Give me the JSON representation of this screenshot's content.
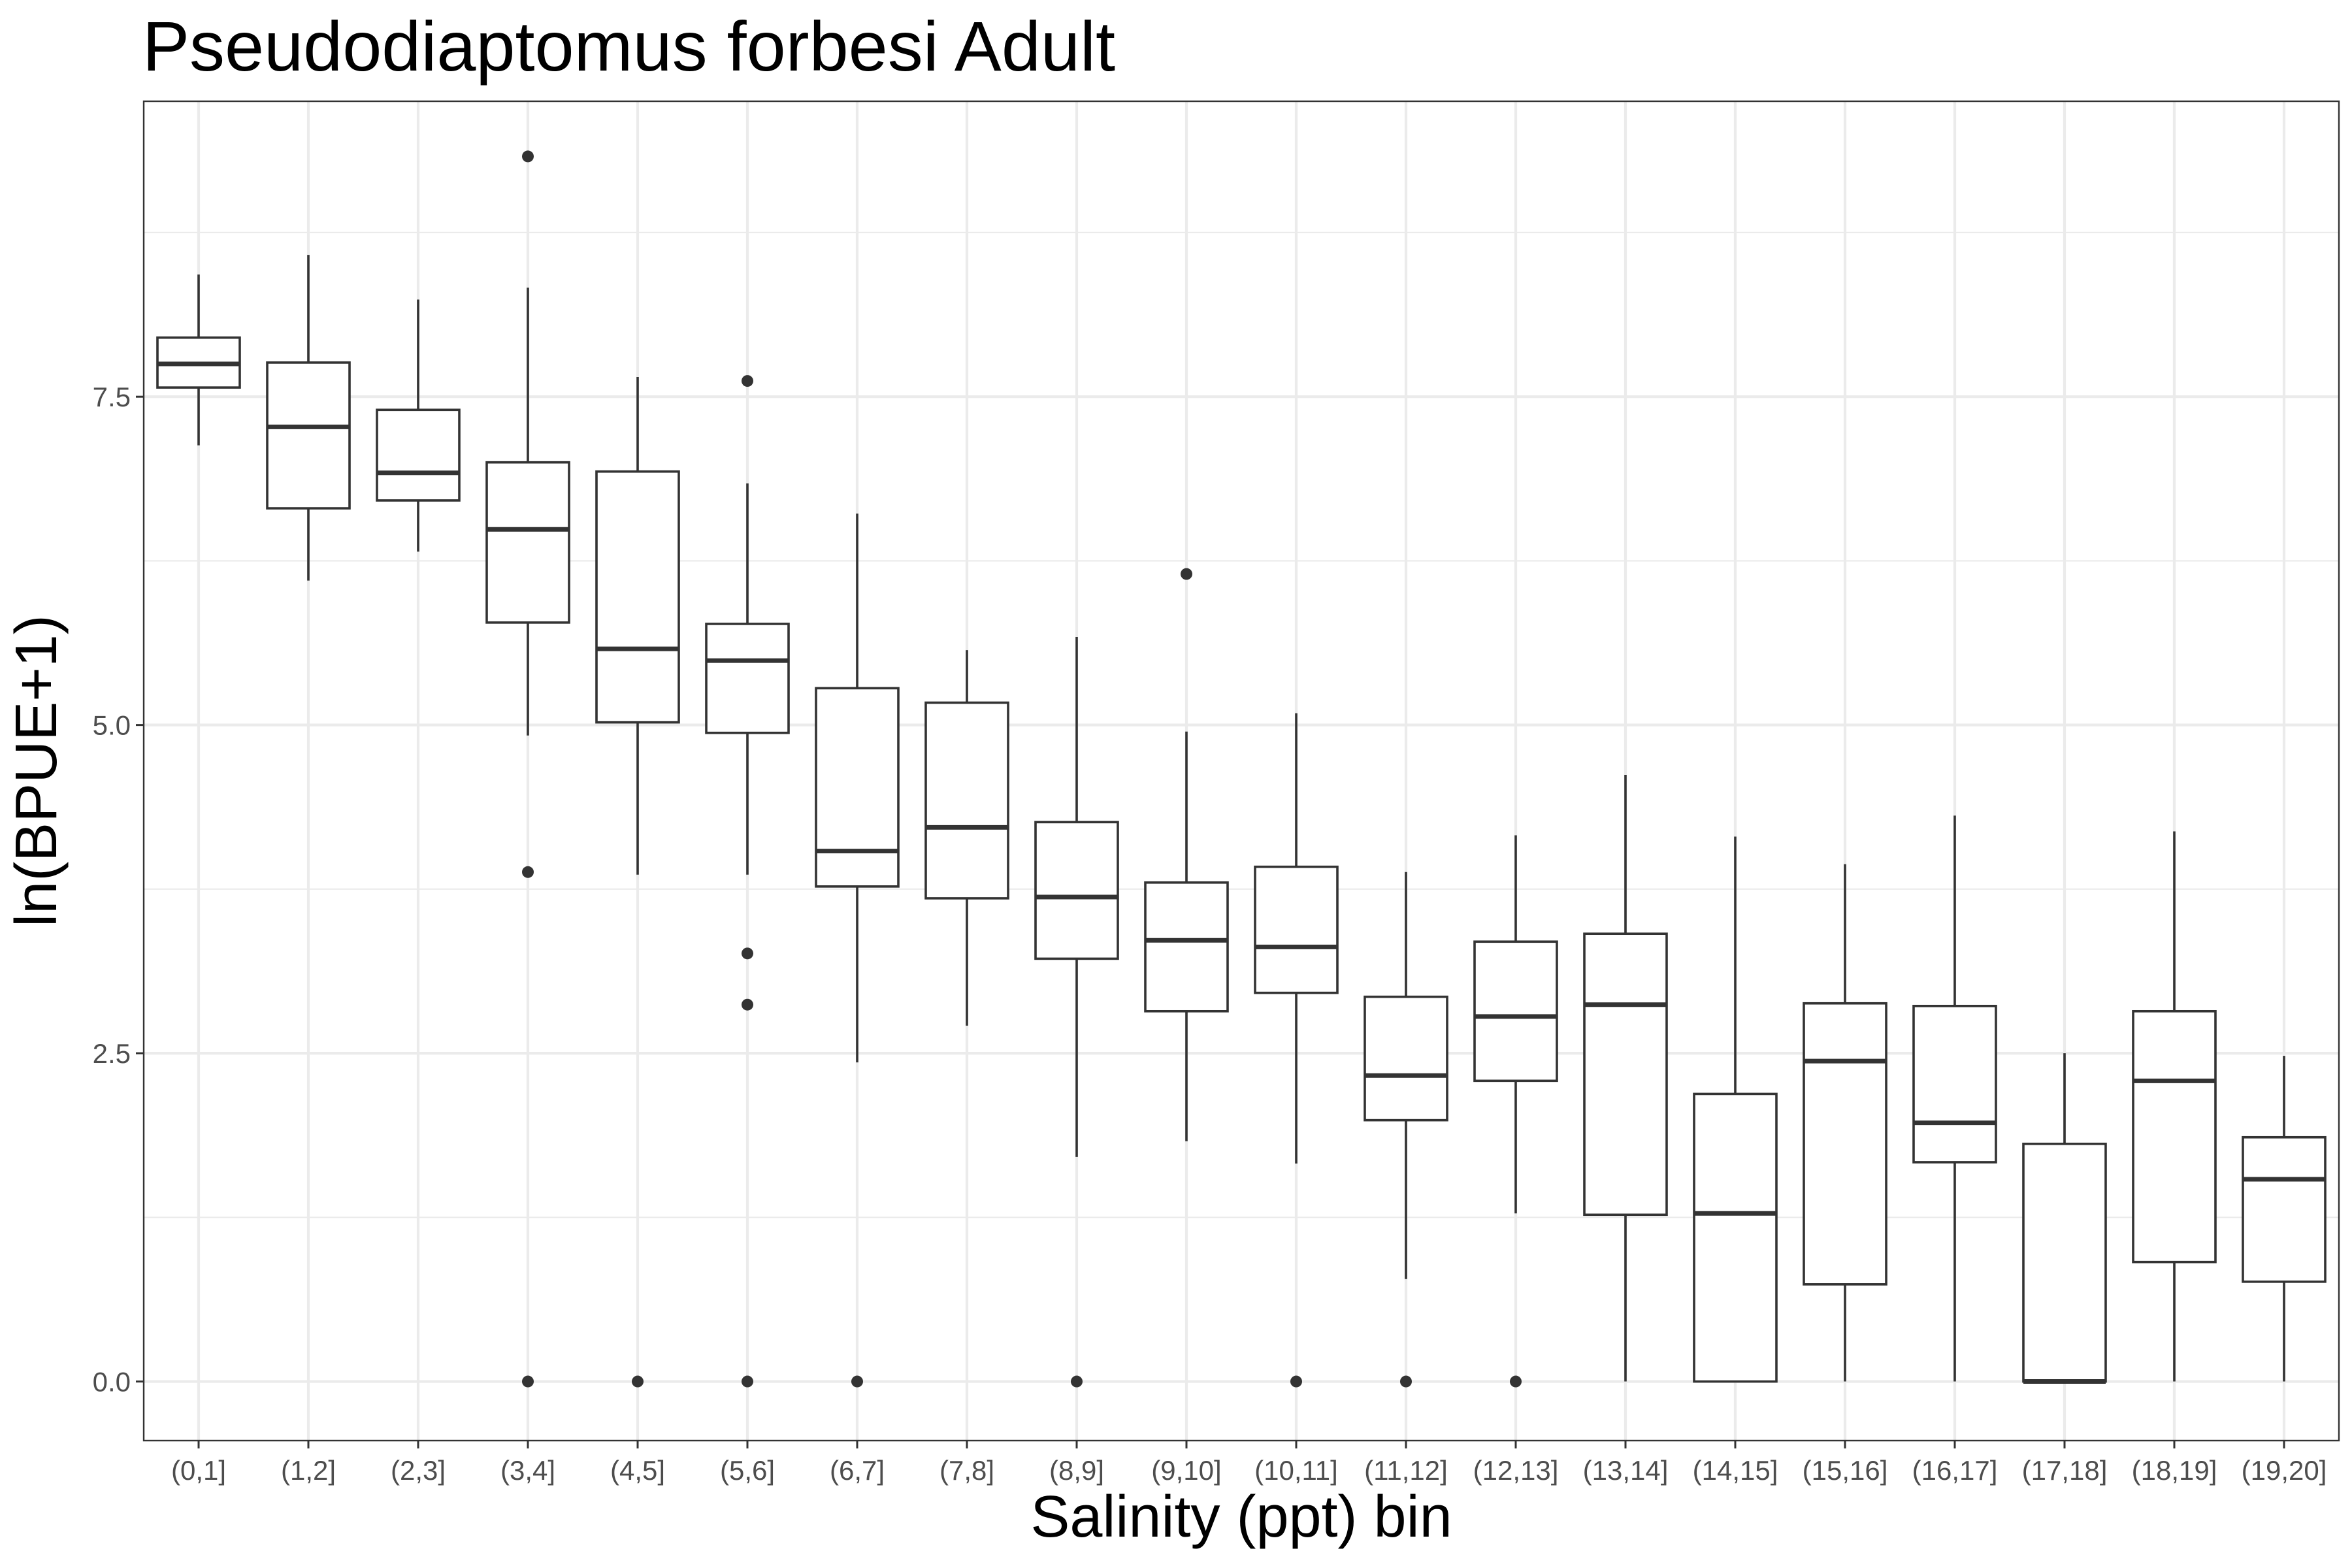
{
  "chart_data": {
    "type": "box",
    "title": "Pseudodiaptomus forbesi Adult",
    "xlabel": "Salinity (ppt) bin",
    "ylabel": "ln(BPUE+1)",
    "ylim": [
      -0.45,
      9.75
    ],
    "yticks": [
      0.0,
      2.5,
      5.0,
      7.5
    ],
    "ytick_labels": [
      "0.0",
      "2.5",
      "5.0",
      "7.5"
    ],
    "grid": true,
    "categories": [
      "(0,1]",
      "(1,2]",
      "(2,3]",
      "(3,4]",
      "(4,5]",
      "(5,6]",
      "(6,7]",
      "(7,8]",
      "(8,9]",
      "(9,10]",
      "(10,11]",
      "(11,12]",
      "(12,13]",
      "(13,14]",
      "(14,15]",
      "(15,16]",
      "(16,17]",
      "(17,18]",
      "(18,19]",
      "(19,20]"
    ],
    "boxes": [
      {
        "category": "(0,1]",
        "whisker_low": 7.13,
        "q1": 7.57,
        "median": 7.75,
        "q3": 7.95,
        "whisker_high": 8.43,
        "outliers": []
      },
      {
        "category": "(1,2]",
        "whisker_low": 6.1,
        "q1": 6.65,
        "median": 7.27,
        "q3": 7.76,
        "whisker_high": 8.58,
        "outliers": []
      },
      {
        "category": "(2,3]",
        "whisker_low": 6.32,
        "q1": 6.71,
        "median": 6.92,
        "q3": 7.4,
        "whisker_high": 8.24,
        "outliers": []
      },
      {
        "category": "(3,4]",
        "whisker_low": 4.92,
        "q1": 5.78,
        "median": 6.49,
        "q3": 7.0,
        "whisker_high": 8.33,
        "outliers": [
          9.33,
          3.88,
          0.0
        ]
      },
      {
        "category": "(4,5]",
        "whisker_low": 3.86,
        "q1": 5.02,
        "median": 5.58,
        "q3": 6.93,
        "whisker_high": 7.65,
        "outliers": [
          0.0
        ]
      },
      {
        "category": "(5,6]",
        "whisker_low": 3.86,
        "q1": 4.94,
        "median": 5.49,
        "q3": 5.77,
        "whisker_high": 6.84,
        "outliers": [
          7.62,
          3.26,
          2.87,
          0.0
        ]
      },
      {
        "category": "(6,7]",
        "whisker_low": 2.43,
        "q1": 3.77,
        "median": 4.04,
        "q3": 5.28,
        "whisker_high": 6.61,
        "outliers": [
          0.0
        ]
      },
      {
        "category": "(7,8]",
        "whisker_low": 2.71,
        "q1": 3.68,
        "median": 4.22,
        "q3": 5.17,
        "whisker_high": 5.57,
        "outliers": []
      },
      {
        "category": "(8,9]",
        "whisker_low": 1.71,
        "q1": 3.22,
        "median": 3.69,
        "q3": 4.26,
        "whisker_high": 5.67,
        "outliers": [
          0.0
        ]
      },
      {
        "category": "(9,10]",
        "whisker_low": 1.83,
        "q1": 2.82,
        "median": 3.36,
        "q3": 3.8,
        "whisker_high": 4.95,
        "outliers": [
          6.15
        ]
      },
      {
        "category": "(10,11]",
        "whisker_low": 1.66,
        "q1": 2.96,
        "median": 3.31,
        "q3": 3.92,
        "whisker_high": 5.09,
        "outliers": [
          0.0
        ]
      },
      {
        "category": "(11,12]",
        "whisker_low": 0.78,
        "q1": 1.99,
        "median": 2.33,
        "q3": 2.93,
        "whisker_high": 3.88,
        "outliers": [
          0.0
        ]
      },
      {
        "category": "(12,13]",
        "whisker_low": 1.28,
        "q1": 2.29,
        "median": 2.78,
        "q3": 3.35,
        "whisker_high": 4.16,
        "outliers": [
          0.0
        ]
      },
      {
        "category": "(13,14]",
        "whisker_low": 0.0,
        "q1": 1.27,
        "median": 2.87,
        "q3": 3.41,
        "whisker_high": 4.62,
        "outliers": []
      },
      {
        "category": "(14,15]",
        "whisker_low": 0.0,
        "q1": 0.0,
        "median": 1.28,
        "q3": 2.19,
        "whisker_high": 4.15,
        "outliers": []
      },
      {
        "category": "(15,16]",
        "whisker_low": 0.0,
        "q1": 0.74,
        "median": 2.44,
        "q3": 2.88,
        "whisker_high": 3.94,
        "outliers": []
      },
      {
        "category": "(16,17]",
        "whisker_low": 0.0,
        "q1": 1.67,
        "median": 1.97,
        "q3": 2.86,
        "whisker_high": 4.31,
        "outliers": []
      },
      {
        "category": "(17,18]",
        "whisker_low": 0.0,
        "q1": 0.0,
        "median": 0.0,
        "q3": 1.81,
        "whisker_high": 2.5,
        "outliers": []
      },
      {
        "category": "(18,19]",
        "whisker_low": 0.0,
        "q1": 0.91,
        "median": 2.29,
        "q3": 2.82,
        "whisker_high": 4.19,
        "outliers": []
      },
      {
        "category": "(19,20]",
        "whisker_low": 0.0,
        "q1": 0.76,
        "median": 1.54,
        "q3": 1.86,
        "whisker_high": 2.48,
        "outliers": []
      }
    ]
  }
}
